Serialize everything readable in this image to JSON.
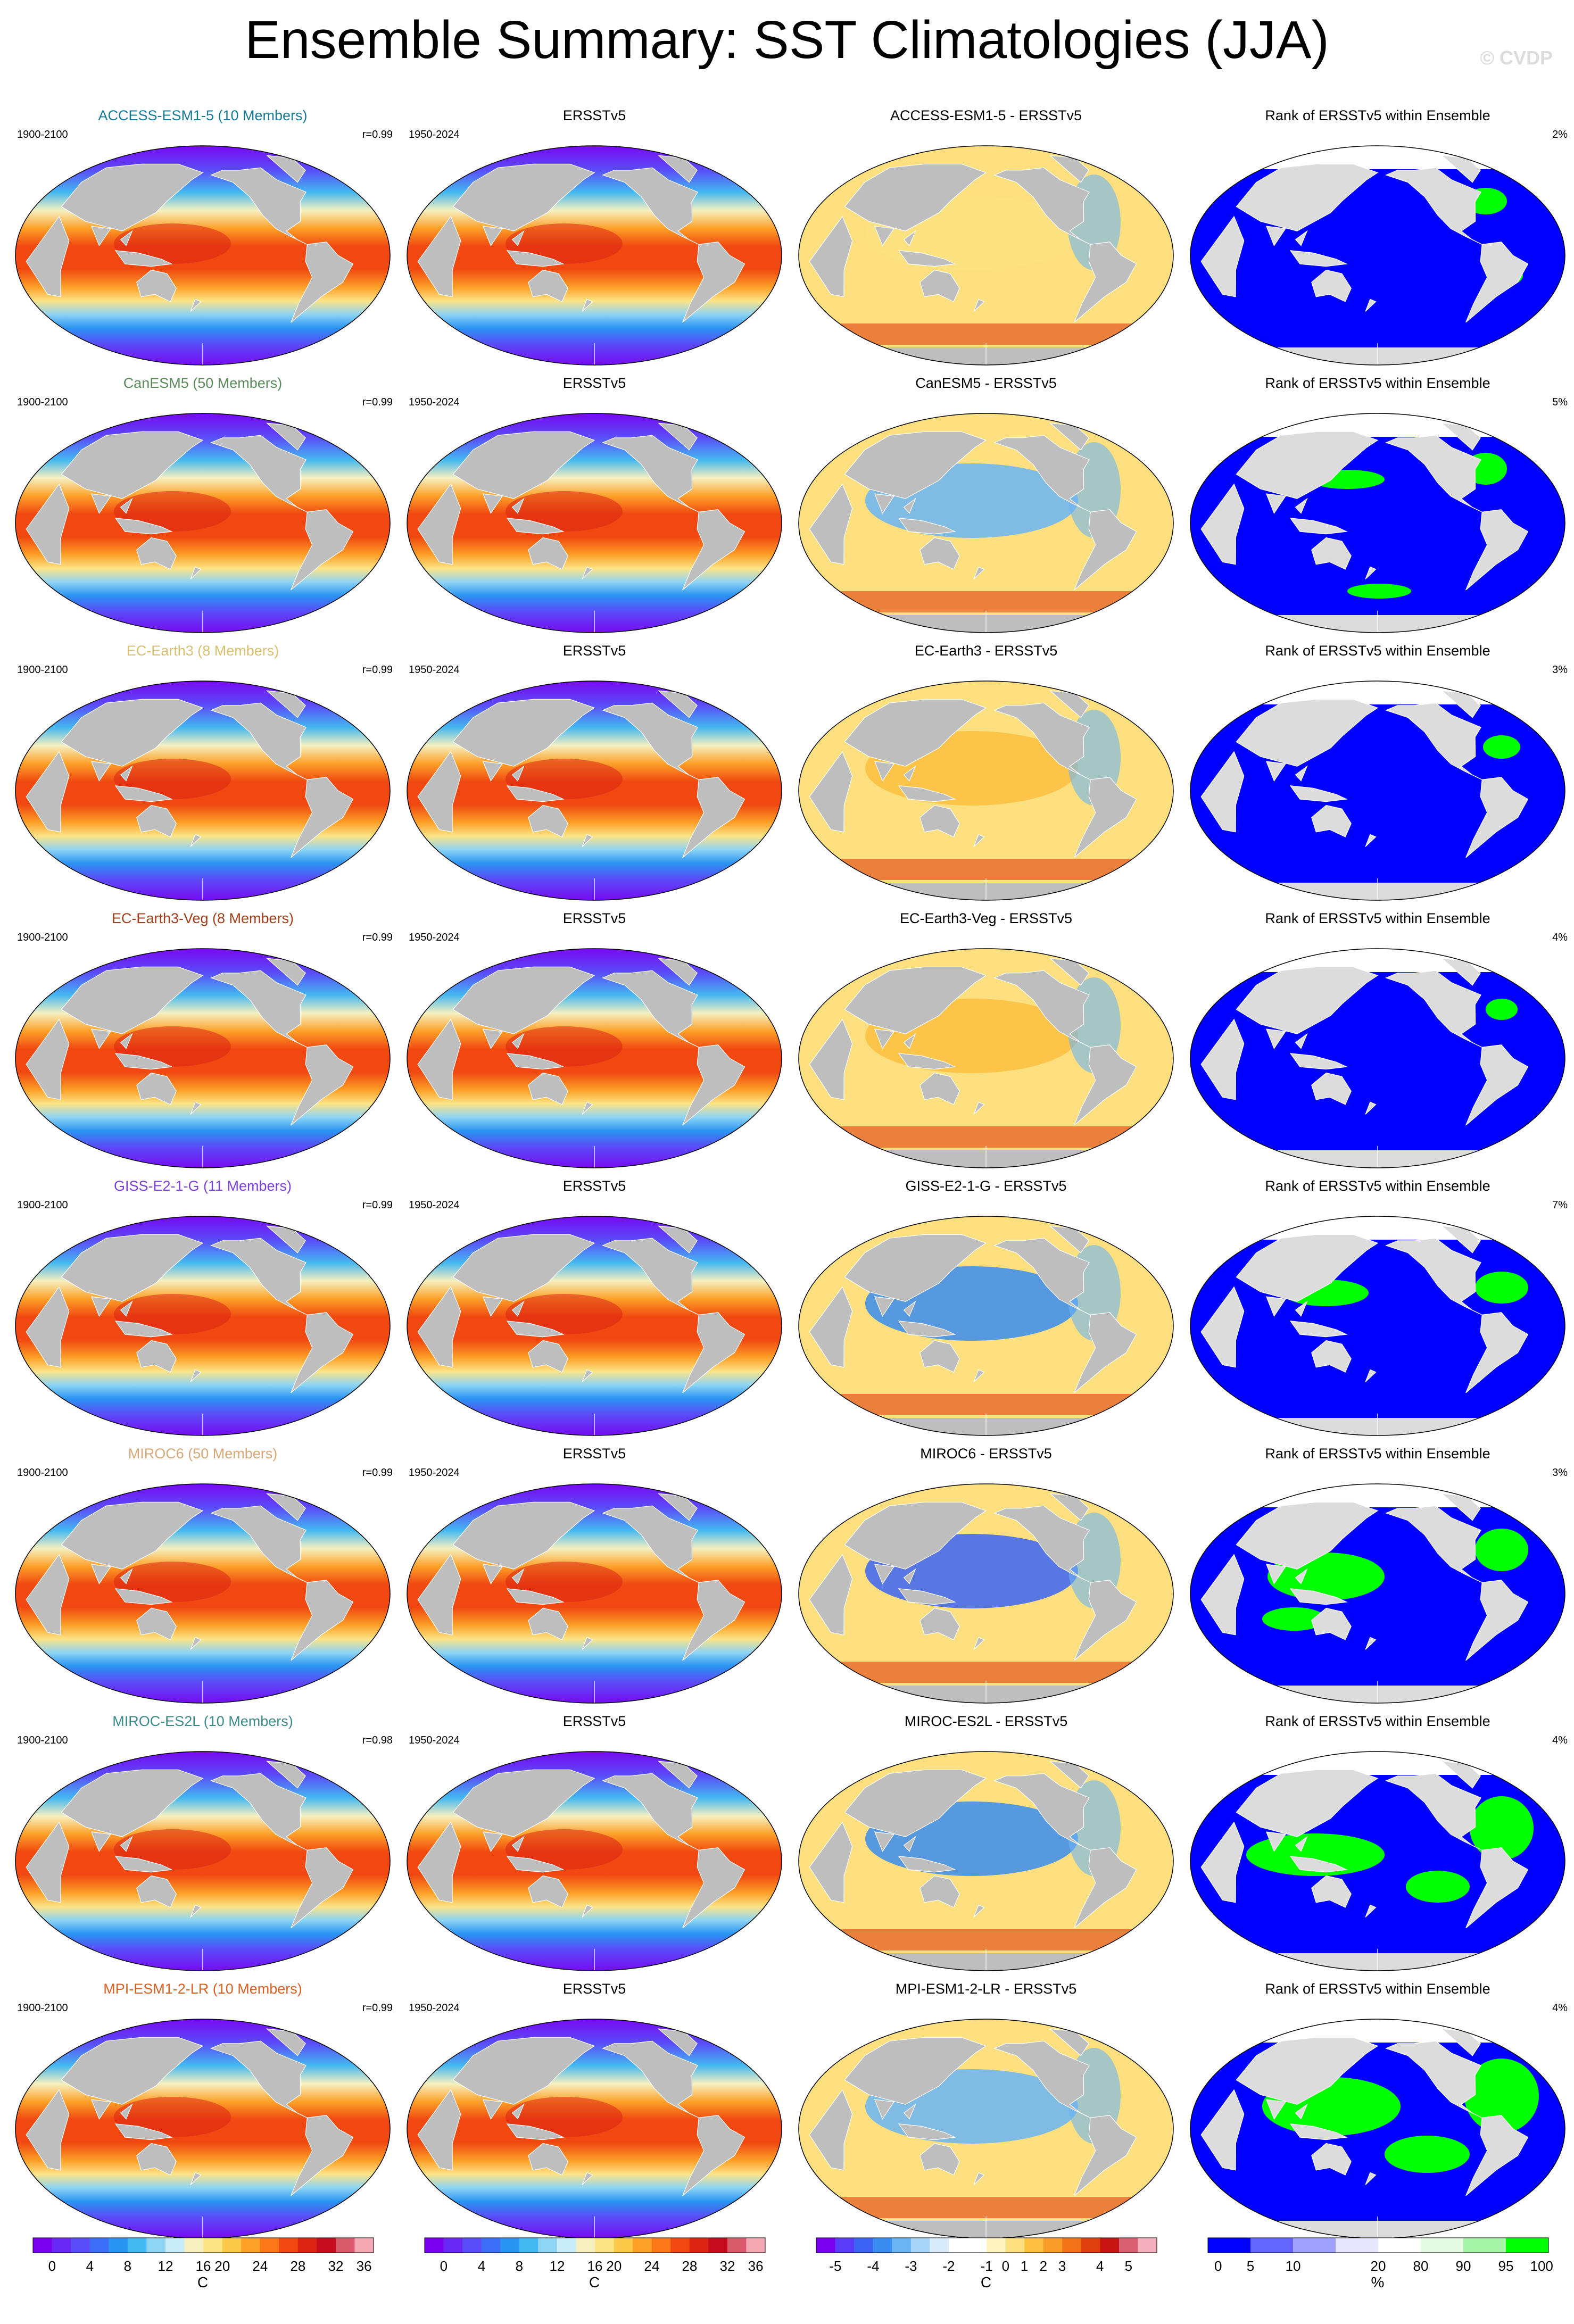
{
  "title": "Ensemble Summary: SST Climatologies (JJA)",
  "watermark": "© CVDP",
  "column_headers": {
    "obs": "ERSSTv5",
    "rank": "Rank of ERSSTv5 within Ensemble"
  },
  "model_period": "1900-2100",
  "obs_period": "1950-2024",
  "rows": [
    {
      "model": "ACCESS-ESM1-5 (10 Members)",
      "diff_title": "ACCESS-ESM1-5 - ERSSTv5",
      "r": "r=0.99",
      "rank_pct": "2%",
      "color": "#1a7a96"
    },
    {
      "model": "CanESM5 (50 Members)",
      "diff_title": "CanESM5 - ERSSTv5",
      "r": "r=0.99",
      "rank_pct": "5%",
      "color": "#5a8a5a"
    },
    {
      "model": "EC-Earth3 (8 Members)",
      "diff_title": "EC-Earth3 - ERSSTv5",
      "r": "r=0.99",
      "rank_pct": "3%",
      "color": "#d8c070"
    },
    {
      "model": "EC-Earth3-Veg (8 Members)",
      "diff_title": "EC-Earth3-Veg - ERSSTv5",
      "r": "r=0.99",
      "rank_pct": "4%",
      "color": "#a0401a"
    },
    {
      "model": "GISS-E2-1-G (11 Members)",
      "diff_title": "GISS-E2-1-G - ERSSTv5",
      "r": "r=0.99",
      "rank_pct": "7%",
      "color": "#7a40d8"
    },
    {
      "model": "MIROC6 (50 Members)",
      "diff_title": "MIROC6 - ERSSTv5",
      "r": "r=0.99",
      "rank_pct": "3%",
      "color": "#d8a878"
    },
    {
      "model": "MIROC-ES2L (10 Members)",
      "diff_title": "MIROC-ES2L - ERSSTv5",
      "r": "r=0.98",
      "rank_pct": "4%",
      "color": "#3a8a8a"
    },
    {
      "model": "MPI-ESM1-2-LR (10 Members)",
      "diff_title": "MPI-ESM1-2-LR - ERSSTv5",
      "r": "r=0.99",
      "rank_pct": "4%",
      "color": "#d86020"
    }
  ],
  "colorbars": {
    "sst": {
      "unit": "C",
      "labels": [
        "0",
        "4",
        "8",
        "12",
        "16",
        "20",
        "24",
        "28",
        "32",
        "36"
      ],
      "colors": [
        "#7b00f0",
        "#6a28f5",
        "#5a4cf8",
        "#3c6ef8",
        "#2a94f2",
        "#44b8f0",
        "#8ed4f4",
        "#c8ecf8",
        "#f6f0c0",
        "#fce486",
        "#fcc848",
        "#fca028",
        "#fa7818",
        "#f04810",
        "#dc2414",
        "#c40c1c",
        "#d85a6a",
        "#f4a8b4"
      ]
    },
    "diff": {
      "unit": "C",
      "labels": [
        "-5",
        "-4",
        "-3",
        "-2",
        "-1",
        "0",
        "1",
        "2",
        "3",
        "4",
        "5"
      ],
      "colors": [
        "#7b00f0",
        "#5a3cf8",
        "#3c64f4",
        "#3a8cf0",
        "#6ab4f4",
        "#a8d4f8",
        "#d8ecfc",
        "#ffffff",
        "#ffffff",
        "#fff4c0",
        "#fce080",
        "#fcc040",
        "#fa9c28",
        "#f47218",
        "#e04010",
        "#c81410",
        "#d86070",
        "#f4b0bc"
      ]
    },
    "rank": {
      "unit": "%",
      "labels": [
        "0",
        "5",
        "10",
        "20",
        "80",
        "90",
        "95",
        "100"
      ],
      "colors": [
        "#0000ff",
        "#6464ff",
        "#a0a0ff",
        "#e6e6ff",
        "#ffffff",
        "#e4fae4",
        "#a6f4a6",
        "#00ff00"
      ]
    }
  },
  "map_colors": {
    "land": "#bebebe",
    "rank_land": "#dcdcdc",
    "rank_low": "#0000ff",
    "rank_high": "#00ff00"
  }
}
